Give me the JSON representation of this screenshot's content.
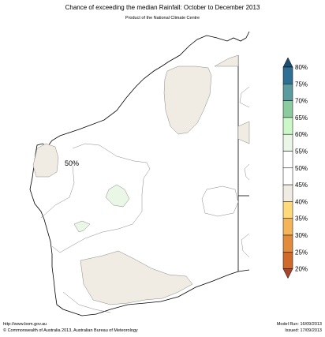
{
  "header": {
    "title": "Chance of exceeding the median Rainfall: October to December 2013",
    "subtitle": "Product of the National Climate Centre"
  },
  "map": {
    "region": "Western Australia",
    "label_50": "50%"
  },
  "legend": {
    "ticks": [
      "80%",
      "75%",
      "70%",
      "65%",
      "60%",
      "55%",
      "50%",
      "45%",
      "40%",
      "35%",
      "30%",
      "25%",
      "20%"
    ],
    "colors": {
      "above_80": "#1d4f73",
      "75_80": "#2f6f93",
      "70_75": "#5b9b9f",
      "65_70": "#8ccaa0",
      "60_65": "#ccf7c8",
      "55_60": "#eaf7e6",
      "50_55": "#ffffff",
      "45_50": "#ffffff",
      "40_45": "#f0ece4",
      "35_40": "#ffd97a",
      "30_35": "#f3b45a",
      "25_30": "#e28b3c",
      "20_25": "#cf6a2b",
      "below_20": "#a8452a"
    }
  },
  "footer": {
    "url": "http://www.bom.gov.au",
    "copyright": "©  Commonwealth of Australia 2013, Australian Bureau of Meteorology",
    "model_run": "Model Run: 16/09/2013",
    "issued": "Issued: 17/09/2013"
  }
}
